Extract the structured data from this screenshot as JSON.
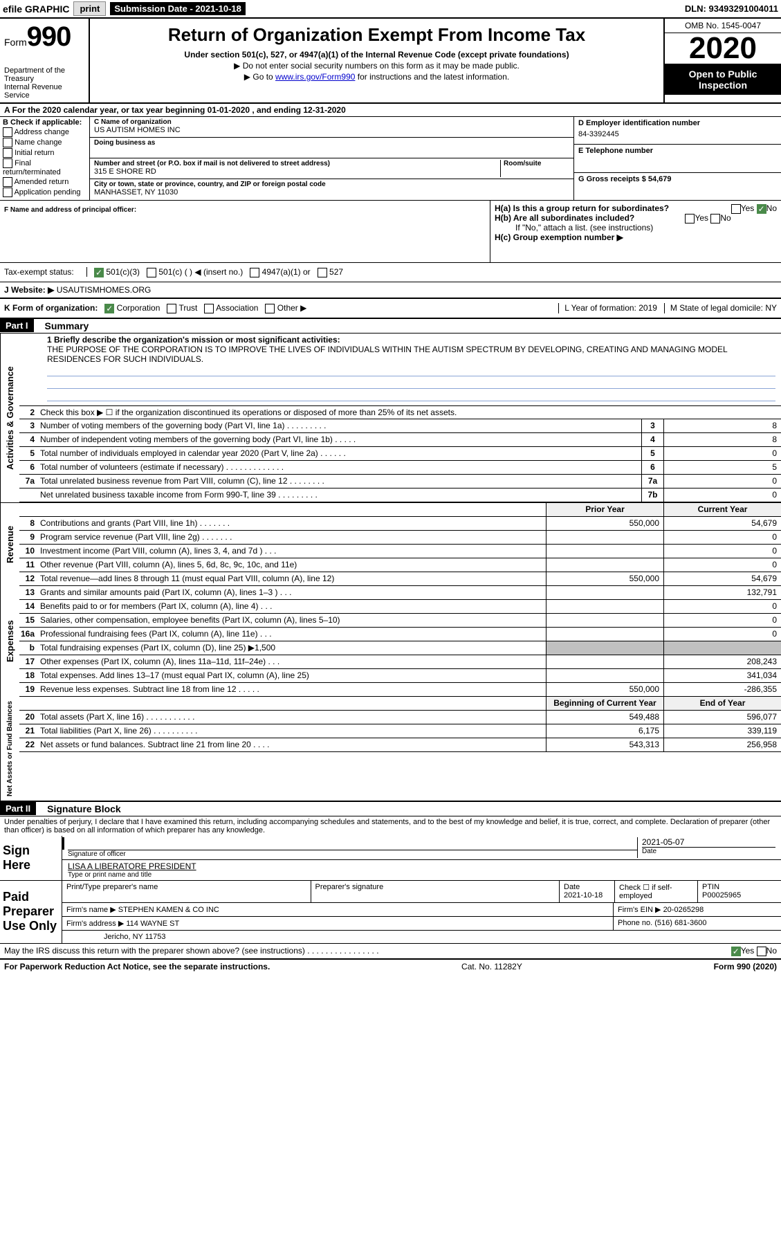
{
  "topbar": {
    "efile": "efile GRAPHIC",
    "print": "print",
    "subdate_label": "Submission Date - 2021-10-18",
    "dln": "DLN: 93493291004011"
  },
  "header": {
    "form_label": "Form",
    "form_num": "990",
    "dept": "Department of the Treasury",
    "irs": "Internal Revenue Service",
    "title": "Return of Organization Exempt From Income Tax",
    "sub": "Under section 501(c), 527, or 4947(a)(1) of the Internal Revenue Code (except private foundations)",
    "sub2": "▶ Do not enter social security numbers on this form as it may be made public.",
    "sub3_pre": "▶ Go to ",
    "sub3_link": "www.irs.gov/Form990",
    "sub3_post": " for instructions and the latest information.",
    "omb": "OMB No. 1545-0047",
    "year": "2020",
    "open": "Open to Public Inspection"
  },
  "line_a": "A For the 2020 calendar year, or tax year beginning 01-01-2020     , and ending 12-31-2020",
  "section_b": {
    "label": "B Check if applicable:",
    "items": [
      "Address change",
      "Name change",
      "Initial return",
      "Final return/terminated",
      "Amended return",
      "Application pending"
    ]
  },
  "section_c": {
    "name_label": "C Name of organization",
    "name": "US AUTISM HOMES INC",
    "dba_label": "Doing business as",
    "addr_label": "Number and street (or P.O. box if mail is not delivered to street address)",
    "room_label": "Room/suite",
    "addr": "315 E SHORE RD",
    "city_label": "City or town, state or province, country, and ZIP or foreign postal code",
    "city": "MANHASSET, NY  11030"
  },
  "section_d": {
    "ein_label": "D Employer identification number",
    "ein": "84-3392445",
    "phone_label": "E Telephone number",
    "gross_label": "G Gross receipts $ 54,679"
  },
  "row_f": {
    "label": "F  Name and address of principal officer:",
    "ha": "H(a)  Is this a group return for subordinates?",
    "hb": "H(b)  Are all subordinates included?",
    "hb_note": "If \"No,\" attach a list. (see instructions)",
    "hc": "H(c)  Group exemption number ▶"
  },
  "tax_exempt": {
    "label": "Tax-exempt status:",
    "opt1": "501(c)(3)",
    "opt2": "501(c) (   ) ◀ (insert no.)",
    "opt3": "4947(a)(1) or",
    "opt4": "527"
  },
  "website": {
    "label": "J   Website: ▶",
    "value": "USAUTISMHOMES.ORG"
  },
  "row_k": {
    "label": "K Form of organization:",
    "opts": [
      "Corporation",
      "Trust",
      "Association",
      "Other ▶"
    ],
    "year_label": "L Year of formation: 2019",
    "state_label": "M State of legal domicile: NY"
  },
  "part1": {
    "header": "Part I",
    "title": "Summary",
    "line1_label": "1  Briefly describe the organization's mission or most significant activities:",
    "line1_text": "THE PURPOSE OF THE CORPORATION IS TO IMPROVE THE LIVES OF INDIVIDUALS WITHIN THE AUTISM SPECTRUM BY DEVELOPING, CREATING AND MANAGING MODEL RESIDENCES FOR SUCH INDIVIDUALS.",
    "line2": "Check this box ▶ ☐  if the organization discontinued its operations or disposed of more than 25% of its net assets."
  },
  "gov_rows": [
    {
      "n": "3",
      "d": "Number of voting members of the governing body (Part VI, line 1a)   .    .    .    .    .    .    .    .    .",
      "b": "3",
      "v": "8"
    },
    {
      "n": "4",
      "d": "Number of independent voting members of the governing body (Part VI, line 1b)   .    .    .    .    .",
      "b": "4",
      "v": "8"
    },
    {
      "n": "5",
      "d": "Total number of individuals employed in calendar year 2020 (Part V, line 2a)   .    .    .    .    .    .",
      "b": "5",
      "v": "0"
    },
    {
      "n": "6",
      "d": "Total number of volunteers (estimate if necessary)    .    .    .    .    .    .    .    .    .    .    .    .    .",
      "b": "6",
      "v": "5"
    },
    {
      "n": "7a",
      "d": "Total unrelated business revenue from Part VIII, column (C), line 12    .    .    .    .    .    .    .    .",
      "b": "7a",
      "v": "0"
    },
    {
      "n": "",
      "d": "Net unrelated business taxable income from Form 990-T, line 39    .    .    .    .    .    .    .    .    .",
      "b": "7b",
      "v": "0"
    }
  ],
  "two_col_header": {
    "prior": "Prior Year",
    "current": "Current Year"
  },
  "revenue_rows": [
    {
      "n": "8",
      "d": "Contributions and grants (Part VIII, line 1h)    .    .    .    .    .    .    .",
      "p": "550,000",
      "c": "54,679"
    },
    {
      "n": "9",
      "d": "Program service revenue (Part VIII, line 2g)    .    .    .    .    .    .    .",
      "p": "",
      "c": "0"
    },
    {
      "n": "10",
      "d": "Investment income (Part VIII, column (A), lines 3, 4, and 7d )    .    .    .",
      "p": "",
      "c": "0"
    },
    {
      "n": "11",
      "d": "Other revenue (Part VIII, column (A), lines 5, 6d, 8c, 9c, 10c, and 11e)",
      "p": "",
      "c": "0"
    },
    {
      "n": "12",
      "d": "Total revenue—add lines 8 through 11 (must equal Part VIII, column (A), line 12)",
      "p": "550,000",
      "c": "54,679"
    }
  ],
  "expense_rows": [
    {
      "n": "13",
      "d": "Grants and similar amounts paid (Part IX, column (A), lines 1–3 )   .    .    .",
      "p": "",
      "c": "132,791"
    },
    {
      "n": "14",
      "d": "Benefits paid to or for members (Part IX, column (A), line 4)    .    .    .",
      "p": "",
      "c": "0"
    },
    {
      "n": "15",
      "d": "Salaries, other compensation, employee benefits (Part IX, column (A), lines 5–10)",
      "p": "",
      "c": "0"
    },
    {
      "n": "16a",
      "d": "Professional fundraising fees (Part IX, column (A), line 11e)    .    .    .",
      "p": "",
      "c": "0"
    },
    {
      "n": "b",
      "d": "Total fundraising expenses (Part IX, column (D), line 25) ▶1,500",
      "p": "grey",
      "c": "grey"
    },
    {
      "n": "17",
      "d": "Other expenses (Part IX, column (A), lines 11a–11d, 11f–24e)    .    .    .",
      "p": "",
      "c": "208,243"
    },
    {
      "n": "18",
      "d": "Total expenses. Add lines 13–17 (must equal Part IX, column (A), line 25)",
      "p": "",
      "c": "341,034"
    },
    {
      "n": "19",
      "d": "Revenue less expenses. Subtract line 18 from line 12    .    .    .    .    .",
      "p": "550,000",
      "c": "-286,355"
    }
  ],
  "net_header": {
    "begin": "Beginning of Current Year",
    "end": "End of Year"
  },
  "net_rows": [
    {
      "n": "20",
      "d": "Total assets (Part X, line 16)   .    .    .    .    .    .    .    .    .    .    .",
      "p": "549,488",
      "c": "596,077"
    },
    {
      "n": "21",
      "d": "Total liabilities (Part X, line 26)   .    .    .    .    .    .    .    .    .    .",
      "p": "6,175",
      "c": "339,119"
    },
    {
      "n": "22",
      "d": "Net assets or fund balances. Subtract line 21 from line 20    .    .    .    .",
      "p": "543,313",
      "c": "256,958"
    }
  ],
  "part2": {
    "header": "Part II",
    "title": "Signature Block",
    "declare": "Under penalties of perjury, I declare that I have examined this return, including accompanying schedules and statements, and to the best of my knowledge and belief, it is true, correct, and complete. Declaration of preparer (other than officer) is based on all information of which preparer has any knowledge."
  },
  "sign": {
    "left": "Sign Here",
    "sig_label": "Signature of officer",
    "date": "2021-05-07",
    "date_label": "Date",
    "name": "LISA A LIBERATORE  PRESIDENT",
    "name_label": "Type or print name and title"
  },
  "paid": {
    "left": "Paid Preparer Use Only",
    "h1": "Print/Type preparer's name",
    "h2": "Preparer's signature",
    "h3": "Date",
    "h3v": "2021-10-18",
    "h4": "Check ☐ if self-employed",
    "h5": "PTIN",
    "h5v": "P00025965",
    "firm_label": "Firm's name     ▶",
    "firm": "STEPHEN KAMEN & CO INC",
    "ein_label": "Firm's EIN ▶",
    "ein": "20-0265298",
    "addr_label": "Firm's address ▶",
    "addr": "114 WAYNE ST",
    "addr2": "Jericho, NY  11753",
    "phone_label": "Phone no.",
    "phone": "(516) 681-3600",
    "discuss": "May the IRS discuss this return with the preparer shown above? (see instructions)    .    .    .    .    .    .    .    .    .    .    .    .    .    .    .    ."
  },
  "footer": {
    "left": "For Paperwork Reduction Act Notice, see the separate instructions.",
    "mid": "Cat. No. 11282Y",
    "right": "Form 990 (2020)"
  },
  "sidebars": {
    "gov": "Activities & Governance",
    "rev": "Revenue",
    "exp": "Expenses",
    "net": "Net Assets or Fund Balances"
  },
  "yes": "Yes",
  "no": "No"
}
